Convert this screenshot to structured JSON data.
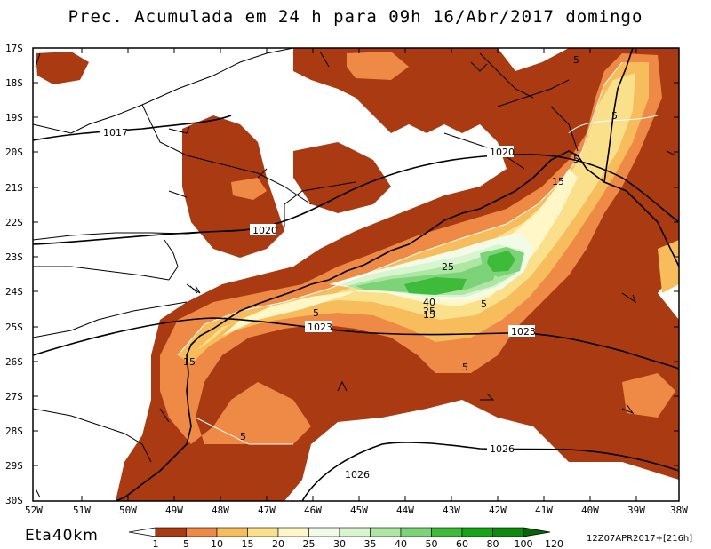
{
  "title": "Prec. Acumulada em 24 h para 09h 16/Abr/2017 domingo",
  "model": "Eta40km",
  "run_info": "12Z07APR2017+[216h]",
  "lat_ticks": [
    "17S",
    "18S",
    "19S",
    "20S",
    "21S",
    "22S",
    "23S",
    "24S",
    "25S",
    "26S",
    "27S",
    "28S",
    "29S",
    "30S"
  ],
  "lon_ticks": [
    "52W",
    "51W",
    "50W",
    "49W",
    "48W",
    "47W",
    "46W",
    "45W",
    "44W",
    "43W",
    "42W",
    "41W",
    "40W",
    "39W",
    "38W"
  ],
  "isobar_labels": [
    "1017",
    "1020",
    "1020",
    "1023",
    "1023",
    "1026",
    "1026"
  ],
  "precip_labels": [
    "5",
    "5",
    "15",
    "15",
    "5",
    "25",
    "40",
    "25",
    "15",
    "5",
    "5",
    "5",
    "5"
  ],
  "colorbar": {
    "levels": [
      "1",
      "5",
      "10",
      "15",
      "20",
      "25",
      "30",
      "35",
      "40",
      "50",
      "60",
      "80",
      "100",
      "120"
    ],
    "colors": [
      "#a93a12",
      "#ee8a45",
      "#f7bc5c",
      "#fbe08c",
      "#fff7c8",
      "#f1fbe8",
      "#d8f5d0",
      "#aee6a4",
      "#7dd478",
      "#3fbb3a",
      "#16a516",
      "#0b8a0b",
      "#066606"
    ]
  }
}
